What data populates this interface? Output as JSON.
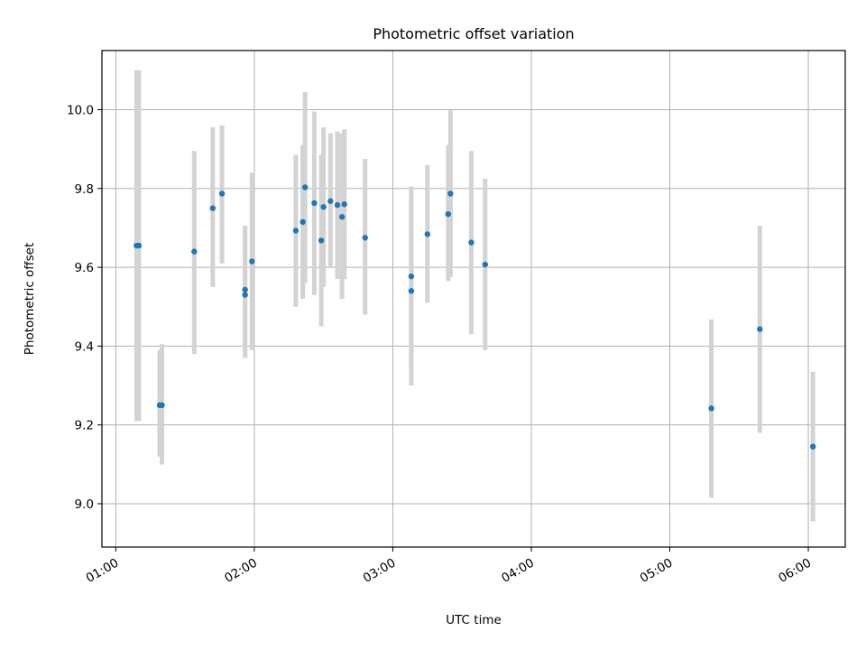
{
  "chart_data": {
    "type": "scatter",
    "title": "Photometric offset variation",
    "xlabel": "UTC time",
    "ylabel": "Photometric offset",
    "x_ticks": [
      "01:00",
      "02:00",
      "03:00",
      "04:00",
      "05:00",
      "06:00"
    ],
    "y_ticks": [
      "9.0",
      "9.2",
      "9.4",
      "9.6",
      "9.8",
      "10.0"
    ],
    "xlim": [
      "00:54",
      "06:16"
    ],
    "ylim": [
      8.89,
      10.15
    ],
    "grid": true,
    "point_color": "#1f77b4",
    "errorbar_color": "#d3d3d3",
    "points": [
      {
        "x": "01:09",
        "y": 9.655,
        "ylo": 9.21,
        "yhi": 10.1
      },
      {
        "x": "01:10",
        "y": 9.655,
        "ylo": 9.21,
        "yhi": 10.1
      },
      {
        "x": "01:19",
        "y": 9.25,
        "ylo": 9.12,
        "yhi": 9.39
      },
      {
        "x": "01:20",
        "y": 9.25,
        "ylo": 9.1,
        "yhi": 9.405
      },
      {
        "x": "01:34",
        "y": 9.64,
        "ylo": 9.38,
        "yhi": 9.895
      },
      {
        "x": "01:42",
        "y": 9.75,
        "ylo": 9.55,
        "yhi": 9.955
      },
      {
        "x": "01:46",
        "y": 9.787,
        "ylo": 9.61,
        "yhi": 9.96
      },
      {
        "x": "01:56",
        "y": 9.53,
        "ylo": 9.37,
        "yhi": 9.705
      },
      {
        "x": "01:56",
        "y": 9.543,
        "ylo": 9.37,
        "yhi": 9.705
      },
      {
        "x": "01:59",
        "y": 9.615,
        "ylo": 9.39,
        "yhi": 9.84
      },
      {
        "x": "02:18",
        "y": 9.693,
        "ylo": 9.5,
        "yhi": 9.885
      },
      {
        "x": "02:21",
        "y": 9.715,
        "ylo": 9.52,
        "yhi": 9.91
      },
      {
        "x": "02:22",
        "y": 9.803,
        "ylo": 9.56,
        "yhi": 10.045
      },
      {
        "x": "02:26",
        "y": 9.763,
        "ylo": 9.53,
        "yhi": 9.995
      },
      {
        "x": "02:29",
        "y": 9.668,
        "ylo": 9.45,
        "yhi": 9.885
      },
      {
        "x": "02:30",
        "y": 9.753,
        "ylo": 9.55,
        "yhi": 9.955
      },
      {
        "x": "02:33",
        "y": 9.768,
        "ylo": 9.6,
        "yhi": 9.94
      },
      {
        "x": "02:36",
        "y": 9.758,
        "ylo": 9.57,
        "yhi": 9.945
      },
      {
        "x": "02:38",
        "y": 9.728,
        "ylo": 9.52,
        "yhi": 9.94
      },
      {
        "x": "02:39",
        "y": 9.76,
        "ylo": 9.57,
        "yhi": 9.95
      },
      {
        "x": "02:48",
        "y": 9.675,
        "ylo": 9.48,
        "yhi": 9.875
      },
      {
        "x": "03:08",
        "y": 9.54,
        "ylo": 9.3,
        "yhi": 9.78
      },
      {
        "x": "03:08",
        "y": 9.577,
        "ylo": 9.35,
        "yhi": 9.805
      },
      {
        "x": "03:15",
        "y": 9.684,
        "ylo": 9.51,
        "yhi": 9.86
      },
      {
        "x": "03:24",
        "y": 9.735,
        "ylo": 9.565,
        "yhi": 9.91
      },
      {
        "x": "03:25",
        "y": 9.787,
        "ylo": 9.575,
        "yhi": 9.998
      },
      {
        "x": "03:34",
        "y": 9.663,
        "ylo": 9.43,
        "yhi": 9.895
      },
      {
        "x": "03:40",
        "y": 9.607,
        "ylo": 9.39,
        "yhi": 9.825
      },
      {
        "x": "05:18",
        "y": 9.242,
        "ylo": 9.015,
        "yhi": 9.468
      },
      {
        "x": "05:39",
        "y": 9.443,
        "ylo": 9.18,
        "yhi": 9.705
      },
      {
        "x": "06:02",
        "y": 9.145,
        "ylo": 8.955,
        "yhi": 9.335
      }
    ]
  }
}
